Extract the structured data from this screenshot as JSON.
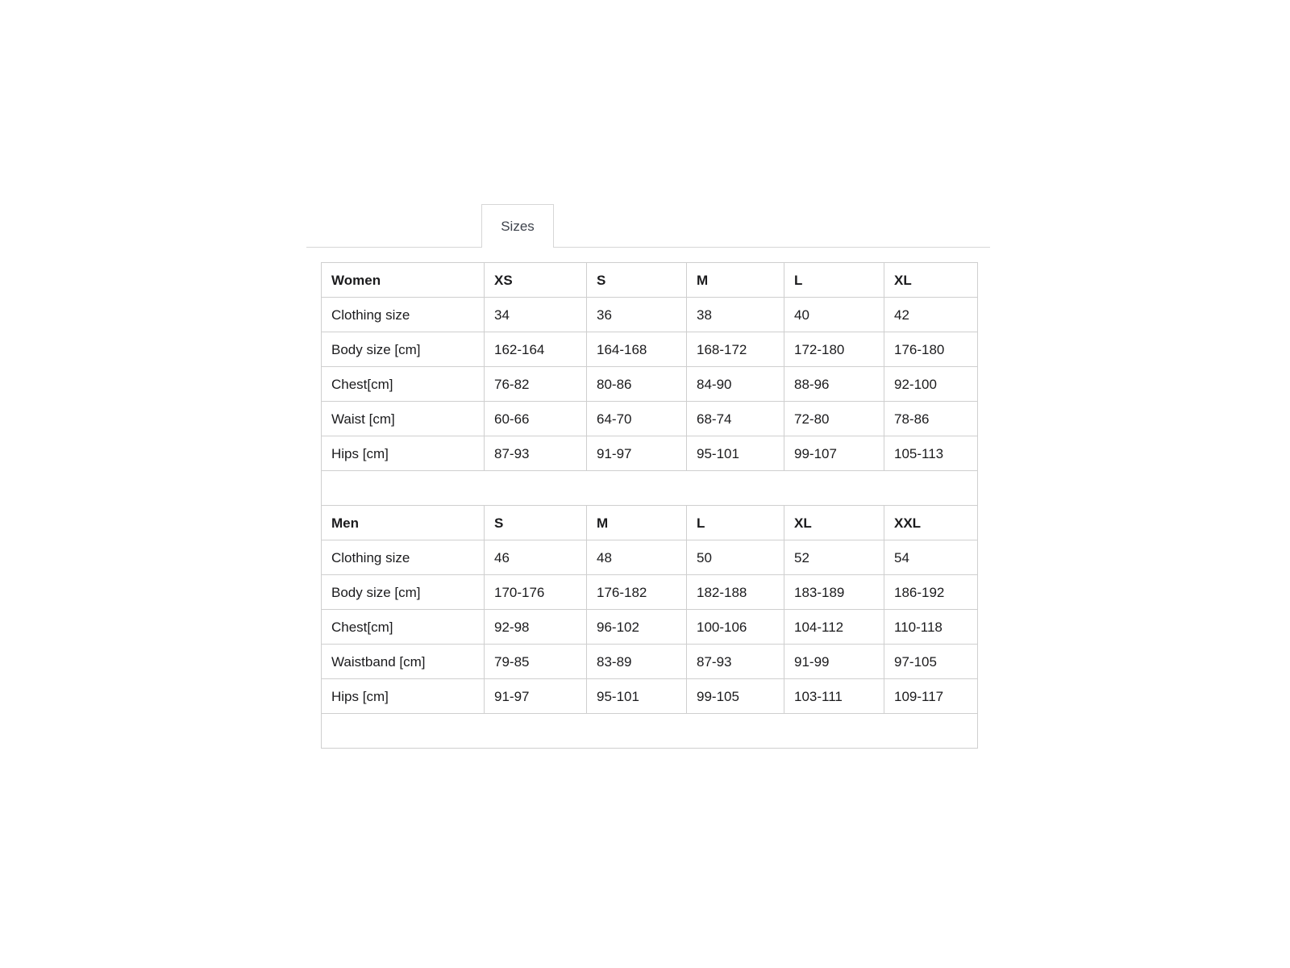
{
  "tab": {
    "label": "Sizes"
  },
  "women_table": {
    "header": [
      "Women",
      "XS",
      "S",
      "M",
      "L",
      "XL"
    ],
    "rows": [
      {
        "label": "Clothing size",
        "values": [
          "34",
          "36",
          "38",
          "40",
          "42"
        ]
      },
      {
        "label": "Body size [cm]",
        "values": [
          "162-164",
          "164-168",
          "168-172",
          "172-180",
          "176-180"
        ]
      },
      {
        "label": "Chest[cm]",
        "values": [
          "76-82",
          "80-86",
          "84-90",
          "88-96",
          "92-100"
        ]
      },
      {
        "label": "Waist [cm]",
        "values": [
          "60-66",
          "64-70",
          "68-74",
          "72-80",
          "78-86"
        ]
      },
      {
        "label": "Hips [cm]",
        "values": [
          "87-93",
          "91-97",
          "95-101",
          "99-107",
          "105-113"
        ]
      }
    ]
  },
  "men_table": {
    "header": [
      "Men",
      "S",
      "M",
      "L",
      "XL",
      "XXL"
    ],
    "rows": [
      {
        "label": "Clothing size",
        "values": [
          "46",
          "48",
          "50",
          "52",
          "54"
        ]
      },
      {
        "label": "Body size [cm]",
        "values": [
          "170-176",
          "176-182",
          "182-188",
          "183-189",
          "186-192"
        ]
      },
      {
        "label": "Chest[cm]",
        "values": [
          "92-98",
          "96-102",
          "100-106",
          "104-112",
          "110-118"
        ]
      },
      {
        "label": "Waistband [cm]",
        "values": [
          "79-85",
          "83-89",
          "87-93",
          "91-99",
          "97-105"
        ]
      },
      {
        "label": "Hips [cm]",
        "values": [
          "91-97",
          "95-101",
          "99-105",
          "103-111",
          "109-117"
        ]
      }
    ]
  },
  "colors": {
    "background": "#ffffff",
    "table_border": "#cfcfcf",
    "tab_border": "#d6d6d6",
    "text": "#1b1b1d",
    "tab_text": "#3e434c"
  }
}
